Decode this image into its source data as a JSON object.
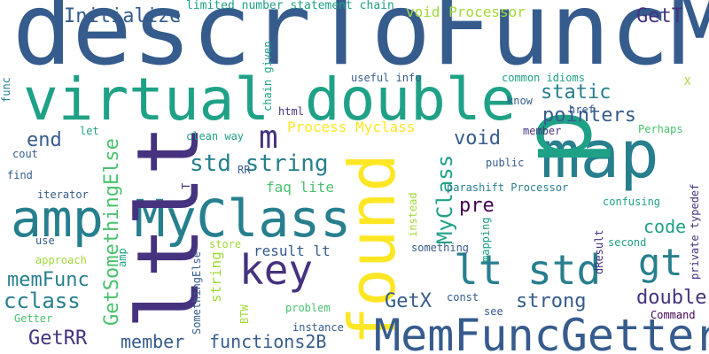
{
  "palette": {
    "dark_purple": "#46327e",
    "blue": "#365c8d",
    "teal_blue": "#277f8e",
    "teal": "#1fa187",
    "green": "#4ac16d",
    "light_green": "#a0da39",
    "yellow": "#fde725",
    "deep_purple": "#440154"
  },
  "words": [
    {
      "text": "descrToFuncMap",
      "color": "blue",
      "vertical": false
    },
    {
      "text": "virtual double",
      "color": "teal",
      "vertical": false
    },
    {
      "text": "map",
      "color": "teal_blue",
      "vertical": false
    },
    {
      "text": "p",
      "color": "teal",
      "vertical": true
    },
    {
      "text": "amp MyClass",
      "color": "teal_blue",
      "vertical": false
    },
    {
      "text": "ltlt",
      "color": "dark_purple",
      "vertical": true
    },
    {
      "text": "found",
      "color": "yellow",
      "vertical": true
    },
    {
      "text": "MemFuncGetter",
      "color": "blue",
      "vertical": false
    },
    {
      "text": "key",
      "color": "dark_purple",
      "vertical": false
    },
    {
      "text": "lt std",
      "color": "teal_blue",
      "vertical": false
    },
    {
      "text": "gt",
      "color": "teal_blue",
      "vertical": false
    },
    {
      "text": "m",
      "color": "dark_purple",
      "vertical": false
    },
    {
      "text": "Initialize",
      "color": "blue",
      "vertical": false
    },
    {
      "text": "std string",
      "color": "teal_blue",
      "vertical": false
    },
    {
      "text": "static",
      "color": "teal_blue",
      "vertical": false
    },
    {
      "text": "pointers",
      "color": "blue",
      "vertical": false
    },
    {
      "text": "void",
      "color": "blue",
      "vertical": false
    },
    {
      "text": "end",
      "color": "blue",
      "vertical": false
    },
    {
      "text": "GetT",
      "color": "dark_purple",
      "vertical": false
    },
    {
      "text": "void Processor",
      "color": "light_green",
      "vertical": false
    },
    {
      "text": "Process Myclass",
      "color": "yellow",
      "vertical": false
    },
    {
      "text": "MyClass",
      "color": "teal",
      "vertical": true
    },
    {
      "text": "GetSomethingElse",
      "color": "green",
      "vertical": true
    },
    {
      "text": "pre",
      "color": "deep_purple",
      "vertical": false
    },
    {
      "text": "code",
      "color": "teal",
      "vertical": false
    },
    {
      "text": "memFunc",
      "color": "teal_blue",
      "vertical": false
    },
    {
      "text": "cclass",
      "color": "teal_blue",
      "vertical": false
    },
    {
      "text": "GetX",
      "color": "blue",
      "vertical": false
    },
    {
      "text": "strong",
      "color": "blue",
      "vertical": false
    },
    {
      "text": "double",
      "color": "dark_purple",
      "vertical": false
    },
    {
      "text": "GetRR",
      "color": "dark_purple",
      "vertical": false
    },
    {
      "text": "member",
      "color": "blue",
      "vertical": false
    },
    {
      "text": "functions2B",
      "color": "blue",
      "vertical": false
    },
    {
      "text": "faq lite",
      "color": "green",
      "vertical": false
    },
    {
      "text": "string",
      "color": "light_green",
      "vertical": true
    },
    {
      "text": "result lt",
      "color": "blue",
      "vertical": false
    },
    {
      "text": "limited number statement chain",
      "color": "teal",
      "vertical": false
    },
    {
      "text": "func",
      "color": "teal_blue",
      "vertical": true
    },
    {
      "text": "chain given",
      "color": "teal",
      "vertical": true
    },
    {
      "text": "useful info",
      "color": "blue",
      "vertical": false
    },
    {
      "text": "common idioms",
      "color": "teal",
      "vertical": false
    },
    {
      "text": "X",
      "color": "light_green",
      "vertical": false
    },
    {
      "text": "know",
      "color": "blue",
      "vertical": false
    },
    {
      "text": "href",
      "color": "blue",
      "vertical": false
    },
    {
      "text": "html",
      "color": "dark_purple",
      "vertical": false
    },
    {
      "text": "member",
      "color": "dark_purple",
      "vertical": false
    },
    {
      "text": "Perhaps",
      "color": "green",
      "vertical": false
    },
    {
      "text": "clean way",
      "color": "teal",
      "vertical": false
    },
    {
      "text": "let",
      "color": "teal",
      "vertical": false
    },
    {
      "text": "cout",
      "color": "blue",
      "vertical": false
    },
    {
      "text": "find",
      "color": "blue",
      "vertical": false
    },
    {
      "text": "RR",
      "color": "blue",
      "vertical": false
    },
    {
      "text": "public",
      "color": "blue",
      "vertical": false
    },
    {
      "text": "T",
      "color": "dark_purple",
      "vertical": true
    },
    {
      "text": "iterator",
      "color": "blue",
      "vertical": false
    },
    {
      "text": "parashift Processor",
      "color": "teal_blue",
      "vertical": false
    },
    {
      "text": "private typedef",
      "color": "dark_purple",
      "vertical": true
    },
    {
      "text": "confusing",
      "color": "teal",
      "vertical": false
    },
    {
      "text": "instead",
      "color": "light_green",
      "vertical": true
    },
    {
      "text": "use",
      "color": "blue",
      "vertical": false
    },
    {
      "text": "store",
      "color": "light_green",
      "vertical": false
    },
    {
      "text": "approach",
      "color": "light_green",
      "vertical": false
    },
    {
      "text": "amp",
      "color": "teal",
      "vertical": true
    },
    {
      "text": "something",
      "color": "blue",
      "vertical": false
    },
    {
      "text": "mapping",
      "color": "teal",
      "vertical": true
    },
    {
      "text": "second",
      "color": "teal",
      "vertical": false
    },
    {
      "text": "dResult",
      "color": "dark_purple",
      "vertical": true
    },
    {
      "text": "Getter",
      "color": "green",
      "vertical": false
    },
    {
      "text": "SomethingElse",
      "color": "blue",
      "vertical": true
    },
    {
      "text": "BTW",
      "color": "light_green",
      "vertical": true
    },
    {
      "text": "problem",
      "color": "green",
      "vertical": false
    },
    {
      "text": "const",
      "color": "blue",
      "vertical": false
    },
    {
      "text": "see",
      "color": "blue",
      "vertical": false
    },
    {
      "text": "Command",
      "color": "deep_purple",
      "vertical": false
    },
    {
      "text": "instance",
      "color": "blue",
      "vertical": false
    }
  ]
}
